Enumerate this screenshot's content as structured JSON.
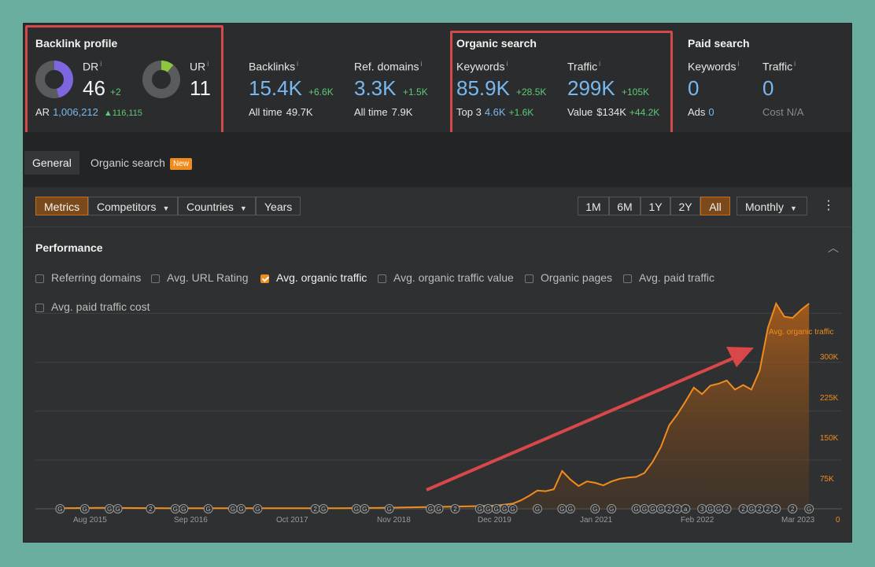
{
  "backlink_profile": {
    "title": "Backlink profile",
    "dr": {
      "label": "DR",
      "value": "46",
      "delta": "+2",
      "fill_fraction": 0.46
    },
    "ur": {
      "label": "UR",
      "value": "11",
      "fill_fraction": 0.11
    },
    "ar": {
      "label": "AR",
      "value": "1,006,212",
      "delta": "▲116,115"
    }
  },
  "backlinks": {
    "label": "Backlinks",
    "value": "15.4K",
    "delta": "+6.6K",
    "sub_label": "All time",
    "sub_value": "49.7K"
  },
  "ref_domains": {
    "label": "Ref. domains",
    "value": "3.3K",
    "delta": "+1.5K",
    "sub_label": "All time",
    "sub_value": "7.9K"
  },
  "organic_search": {
    "title": "Organic search",
    "keywords": {
      "label": "Keywords",
      "value": "85.9K",
      "delta": "+28.5K",
      "sub_label": "Top 3",
      "sub_value": "4.6K",
      "sub_delta": "+1.6K"
    },
    "traffic": {
      "label": "Traffic",
      "value": "299K",
      "delta": "+105K",
      "sub_label": "Value",
      "sub_value": "$134K",
      "sub_delta": "+44.2K"
    }
  },
  "paid_search": {
    "title": "Paid search",
    "keywords": {
      "label": "Keywords",
      "value": "0",
      "sub_label": "Ads",
      "sub_value": "0"
    },
    "traffic": {
      "label": "Traffic",
      "value": "0",
      "sub_label": "Cost",
      "sub_value": "N/A"
    }
  },
  "tabs": [
    {
      "label": "General",
      "active": true
    },
    {
      "label": "Organic search",
      "badge": "New",
      "active": false
    }
  ],
  "toolbar": {
    "view_buttons": [
      {
        "label": "Metrics",
        "active": true
      },
      {
        "label": "Competitors",
        "dropdown": true
      },
      {
        "label": "Countries",
        "dropdown": true
      },
      {
        "label": "Years"
      }
    ],
    "ranges": [
      {
        "label": "1M"
      },
      {
        "label": "6M"
      },
      {
        "label": "1Y"
      },
      {
        "label": "2Y"
      },
      {
        "label": "All",
        "active": true
      }
    ],
    "interval": "Monthly"
  },
  "performance": {
    "title": "Performance",
    "metrics": [
      {
        "label": "Referring domains",
        "checked": false
      },
      {
        "label": "Avg. URL Rating",
        "checked": false
      },
      {
        "label": "Avg. organic traffic",
        "checked": true
      },
      {
        "label": "Avg. organic traffic value",
        "checked": false
      },
      {
        "label": "Organic pages",
        "checked": false
      },
      {
        "label": "Avg. paid traffic",
        "checked": false
      },
      {
        "label": "Avg. paid traffic cost",
        "checked": false
      }
    ]
  },
  "colors": {
    "accent": "#f08c1e",
    "link": "#78b8f0",
    "positive": "#5fc97a",
    "highlight": "#d24a4a"
  },
  "chart_data": {
    "type": "area",
    "series": [
      {
        "name": "Avg. organic traffic",
        "x": [
          "2015-08",
          "2016-01",
          "2016-09",
          "2017-06",
          "2018-06",
          "2018-11",
          "2019-06",
          "2019-10",
          "2020-01",
          "2020-03",
          "2020-04",
          "2020-05",
          "2020-06",
          "2020-07",
          "2020-08",
          "2020-09",
          "2020-10",
          "2020-11",
          "2020-12",
          "2021-01",
          "2021-02",
          "2021-03",
          "2021-04",
          "2021-05",
          "2021-06",
          "2021-07",
          "2021-08",
          "2021-09",
          "2021-10",
          "2021-11",
          "2021-12",
          "2022-01",
          "2022-02",
          "2022-03",
          "2022-04",
          "2022-05",
          "2022-06",
          "2022-07",
          "2022-08",
          "2022-09",
          "2022-10",
          "2022-11",
          "2022-12",
          "2023-01",
          "2023-02",
          "2023-03"
        ],
        "values": [
          1000,
          1500,
          1000,
          1000,
          1000,
          1500,
          3000,
          4000,
          5000,
          8000,
          13000,
          20000,
          28000,
          27000,
          30000,
          58000,
          45000,
          35000,
          42000,
          40000,
          36000,
          42000,
          46000,
          48000,
          49000,
          55000,
          72000,
          95000,
          128000,
          145000,
          165000,
          186000,
          176000,
          189000,
          192000,
          197000,
          183000,
          190000,
          183000,
          212000,
          278000,
          315000,
          295000,
          293000,
          305000,
          315000
        ]
      }
    ],
    "x_tick_labels": [
      "Aug 2015",
      "Sep 2016",
      "Oct 2017",
      "Nov 2018",
      "Dec 2019",
      "Jan 2021",
      "Feb 2022",
      "Mar 2023"
    ],
    "y_tick_labels": [
      "300K",
      "225K",
      "150K",
      "75K",
      "0"
    ],
    "y_ticks": [
      300000,
      225000,
      150000,
      75000,
      0
    ],
    "ylim": [
      0,
      315000
    ],
    "xlim": [
      "2015-05",
      "2023-07"
    ],
    "grid": true,
    "annotation_markers": [
      {
        "date": "2015-08",
        "label": "G"
      },
      {
        "date": "2015-11",
        "label": "G"
      },
      {
        "date": "2016-02",
        "label": "G"
      },
      {
        "date": "2016-03",
        "label": "G"
      },
      {
        "date": "2016-07",
        "label": "2"
      },
      {
        "date": "2016-10",
        "label": "G"
      },
      {
        "date": "2016-11",
        "label": "G"
      },
      {
        "date": "2017-02",
        "label": "G"
      },
      {
        "date": "2017-05",
        "label": "G"
      },
      {
        "date": "2017-06",
        "label": "G"
      },
      {
        "date": "2017-08",
        "label": "G"
      },
      {
        "date": "2018-03",
        "label": "2"
      },
      {
        "date": "2018-04",
        "label": "G"
      },
      {
        "date": "2018-08",
        "label": "G"
      },
      {
        "date": "2018-09",
        "label": "G"
      },
      {
        "date": "2018-12",
        "label": "G"
      },
      {
        "date": "2019-05",
        "label": "G"
      },
      {
        "date": "2019-06",
        "label": "G"
      },
      {
        "date": "2019-08",
        "label": "2"
      },
      {
        "date": "2019-11",
        "label": "G"
      },
      {
        "date": "2019-12",
        "label": "G"
      },
      {
        "date": "2020-01",
        "label": "G"
      },
      {
        "date": "2020-02",
        "label": "G"
      },
      {
        "date": "2020-03",
        "label": "G"
      },
      {
        "date": "2020-06",
        "label": "G"
      },
      {
        "date": "2020-09",
        "label": "G"
      },
      {
        "date": "2020-10",
        "label": "G"
      },
      {
        "date": "2021-01",
        "label": "G"
      },
      {
        "date": "2021-03",
        "label": "G"
      },
      {
        "date": "2021-06",
        "label": "G"
      },
      {
        "date": "2021-07",
        "label": "G"
      },
      {
        "date": "2021-08",
        "label": "G"
      },
      {
        "date": "2021-09",
        "label": "G"
      },
      {
        "date": "2021-10",
        "label": "2"
      },
      {
        "date": "2021-11",
        "label": "2"
      },
      {
        "date": "2021-12",
        "label": "a"
      },
      {
        "date": "2022-02",
        "label": "3"
      },
      {
        "date": "2022-03",
        "label": "G"
      },
      {
        "date": "2022-04",
        "label": "G"
      },
      {
        "date": "2022-05",
        "label": "2"
      },
      {
        "date": "2022-07",
        "label": "2"
      },
      {
        "date": "2022-08",
        "label": "G"
      },
      {
        "date": "2022-09",
        "label": "2"
      },
      {
        "date": "2022-10",
        "label": "2"
      },
      {
        "date": "2022-11",
        "label": "2"
      },
      {
        "date": "2023-01",
        "label": "2"
      },
      {
        "date": "2023-03",
        "label": "G"
      }
    ]
  }
}
